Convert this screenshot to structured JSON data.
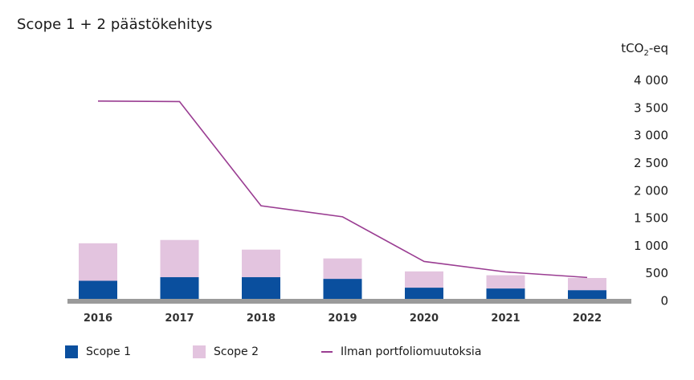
{
  "title": "Scope 1 + 2 päästökehitys",
  "unit": {
    "main": "tCO",
    "sub": "2",
    "suffix": "-eq"
  },
  "colors": {
    "scope1": "#0a4f9e",
    "scope2": "#e3c4df",
    "line": "#9a3d92",
    "axis": "#9a9a9a"
  },
  "chart_data": {
    "type": "bar",
    "stacked": true,
    "categories": [
      "2016",
      "2017",
      "2018",
      "2019",
      "2020",
      "2021",
      "2022"
    ],
    "series": [
      {
        "name": "Scope 1",
        "type": "bar",
        "values": [
          350,
          415,
          415,
          385,
          225,
          210,
          180
        ]
      },
      {
        "name": "Scope 2",
        "type": "bar",
        "values": [
          680,
          675,
          500,
          370,
          295,
          240,
          220
        ]
      },
      {
        "name": "Ilman portfoliomuutoksia",
        "type": "line",
        "values": [
          3610,
          3600,
          1710,
          1510,
          700,
          510,
          410
        ]
      }
    ],
    "ylim": [
      0,
      4000
    ],
    "yticks": [
      0,
      500,
      1000,
      1500,
      2000,
      2500,
      3000,
      3500,
      4000
    ],
    "ytick_labels": [
      "0",
      "500",
      "1 000",
      "1 500",
      "2 000",
      "2 500",
      "3 000",
      "3 500",
      "4 000"
    ],
    "y_axis_side": "right",
    "grid": false,
    "legend_position": "bottom"
  },
  "legend": [
    {
      "label": "Scope 1",
      "kind": "bar"
    },
    {
      "label": "Scope 2",
      "kind": "bar"
    },
    {
      "label": "Ilman portfoliomuutoksia",
      "kind": "line"
    }
  ]
}
